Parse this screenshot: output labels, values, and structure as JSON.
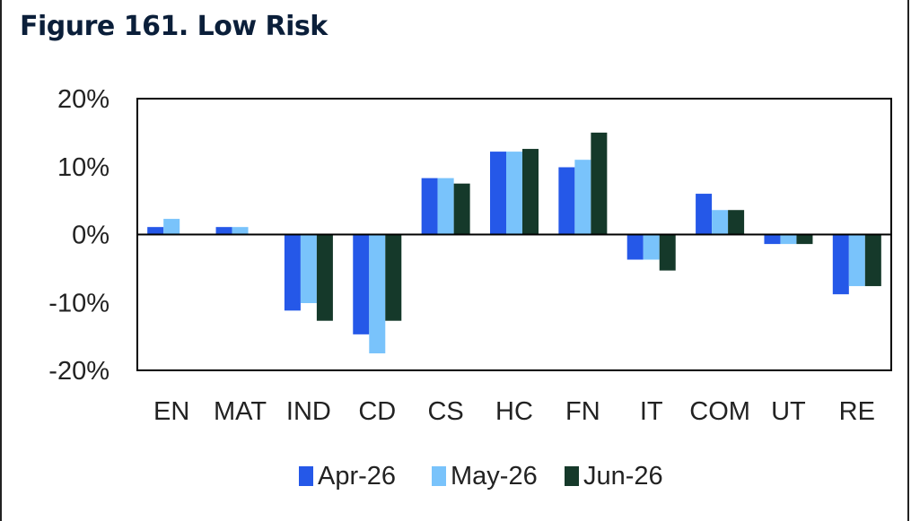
{
  "header": {
    "title": "Figure 161. Low Risk"
  },
  "chart_data": {
    "type": "bar",
    "title": "Figure 161. Low Risk",
    "xlabel": "",
    "ylabel": "",
    "ylim": [
      -20,
      20
    ],
    "yticks": [
      20,
      10,
      0,
      -10,
      -20
    ],
    "ytick_labels": [
      "20%",
      "10%",
      "0%",
      "-10%",
      "-20%"
    ],
    "categories": [
      "EN",
      "MAT",
      "IND",
      "CD",
      "CS",
      "HC",
      "FN",
      "IT",
      "COM",
      "UT",
      "RE"
    ],
    "series": [
      {
        "name": "Apr-26",
        "color": "#2558e8",
        "values": [
          1.1,
          1.1,
          -11.2,
          -14.7,
          8.3,
          12.2,
          9.9,
          -3.7,
          6.0,
          -1.4,
          -8.8
        ]
      },
      {
        "name": "May-26",
        "color": "#79c3fb",
        "values": [
          2.3,
          1.1,
          -10.1,
          -17.5,
          8.3,
          12.2,
          11.0,
          -3.7,
          3.6,
          -1.4,
          -7.6
        ]
      },
      {
        "name": "Jun-26",
        "color": "#15392a",
        "values": [
          0,
          0,
          -12.7,
          -12.7,
          7.5,
          12.6,
          15.0,
          -5.3,
          3.6,
          -1.4,
          -7.6
        ]
      }
    ],
    "legend_position": "bottom",
    "grid": false
  }
}
